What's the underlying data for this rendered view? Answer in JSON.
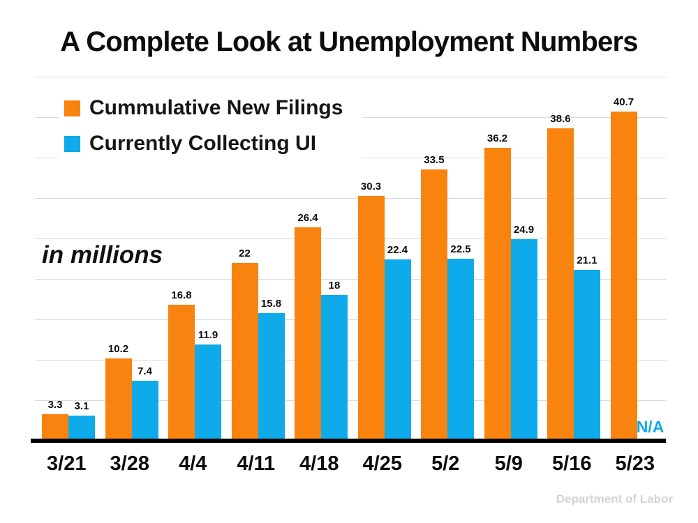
{
  "title": "A Complete Look at Unemployment Numbers",
  "unit_label": "in millions",
  "source": "Department of Labor",
  "colors": {
    "orange": "#F8830E",
    "blue": "#0FAAE9",
    "gridline": "#DADADA",
    "axis_line": "#000000",
    "na_text": "#0FAAE9",
    "source_text": "#D4D4D4",
    "text": "#0D0D0D"
  },
  "chart_data": {
    "type": "bar",
    "title": "A Complete Look at Unemployment Numbers",
    "categories": [
      "3/21",
      "3/28",
      "4/4",
      "4/11",
      "4/18",
      "4/25",
      "5/2",
      "5/9",
      "5/16",
      "5/23"
    ],
    "series": [
      {
        "name": "Cummulative New Filings",
        "color_key": "orange",
        "values": [
          3.3,
          10.2,
          16.8,
          22,
          26.4,
          30.3,
          33.5,
          36.2,
          38.6,
          40.7
        ],
        "labels": [
          "3.3",
          "10.2",
          "16.8",
          "22",
          "26.4",
          "30.3",
          "33.5",
          "36.2",
          "38.6",
          "40.7"
        ]
      },
      {
        "name": "Currently Collecting UI",
        "color_key": "blue",
        "values": [
          3.1,
          7.4,
          11.9,
          15.8,
          18,
          22.4,
          22.5,
          24.9,
          21.1,
          null
        ],
        "labels": [
          "3.1",
          "7.4",
          "11.9",
          "15.8",
          "18",
          "22.4",
          "22.5",
          "24.9",
          "21.1",
          "N/A"
        ]
      }
    ],
    "na_text": "N/A",
    "ylabel": "in millions",
    "xlabel": "",
    "ylim": [
      0,
      45
    ],
    "gridline_step": 5,
    "grid": "horizontal",
    "legend_position": "top-left",
    "data_labels": true
  }
}
